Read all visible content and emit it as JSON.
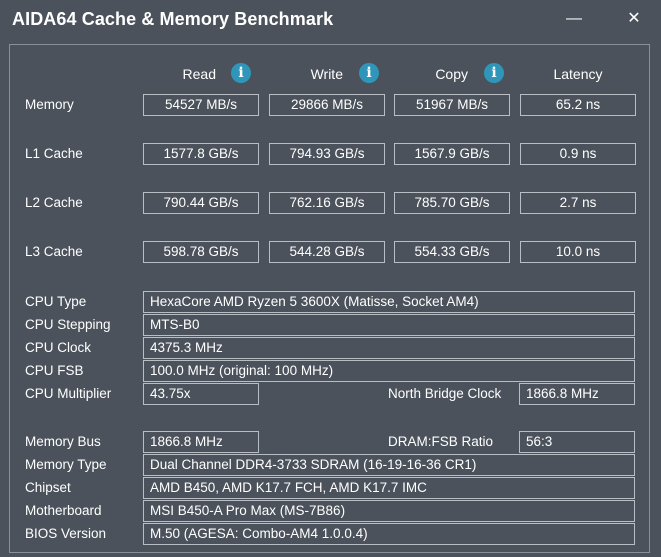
{
  "window": {
    "title": "AIDA64 Cache & Memory Benchmark",
    "minimize_glyph": "—",
    "close_glyph": "✕"
  },
  "columns": {
    "read": "Read",
    "write": "Write",
    "copy": "Copy",
    "latency": "Latency",
    "info_glyph": "i"
  },
  "results": [
    {
      "label": "Memory",
      "read": "54527 MB/s",
      "write": "29866 MB/s",
      "copy": "51967 MB/s",
      "latency": "65.2 ns"
    },
    {
      "label": "L1 Cache",
      "read": "1577.8 GB/s",
      "write": "794.93 GB/s",
      "copy": "1567.9 GB/s",
      "latency": "0.9 ns"
    },
    {
      "label": "L2 Cache",
      "read": "790.44 GB/s",
      "write": "762.16 GB/s",
      "copy": "785.70 GB/s",
      "latency": "2.7 ns"
    },
    {
      "label": "L3 Cache",
      "read": "598.78 GB/s",
      "write": "544.28 GB/s",
      "copy": "554.33 GB/s",
      "latency": "10.0 ns"
    }
  ],
  "system": {
    "cpu_type": {
      "label": "CPU Type",
      "value": "HexaCore AMD Ryzen 5 3600X  (Matisse, Socket AM4)"
    },
    "cpu_stepping": {
      "label": "CPU Stepping",
      "value": "MTS-B0"
    },
    "cpu_clock": {
      "label": "CPU Clock",
      "value": "4375.3 MHz"
    },
    "cpu_fsb": {
      "label": "CPU FSB",
      "value": "100.0 MHz  (original: 100 MHz)"
    },
    "cpu_multiplier": {
      "label": "CPU Multiplier",
      "value": "43.75x"
    },
    "nb_clock": {
      "label": "North Bridge Clock",
      "value": "1866.8 MHz"
    },
    "memory_bus": {
      "label": "Memory Bus",
      "value": "1866.8 MHz"
    },
    "dram_fsb": {
      "label": "DRAM:FSB Ratio",
      "value": "56:3"
    },
    "memory_type": {
      "label": "Memory Type",
      "value": "Dual Channel DDR4-3733 SDRAM  (16-19-16-36 CR1)"
    },
    "chipset": {
      "label": "Chipset",
      "value": "AMD B450, AMD K17.7 FCH, AMD K17.7 IMC"
    },
    "motherboard": {
      "label": "Motherboard",
      "value": "MSI B450-A Pro Max (MS-7B86)"
    },
    "bios_version": {
      "label": "BIOS Version",
      "value": "M.50  (AGESA: Combo-AM4 1.0.0.4)"
    }
  }
}
